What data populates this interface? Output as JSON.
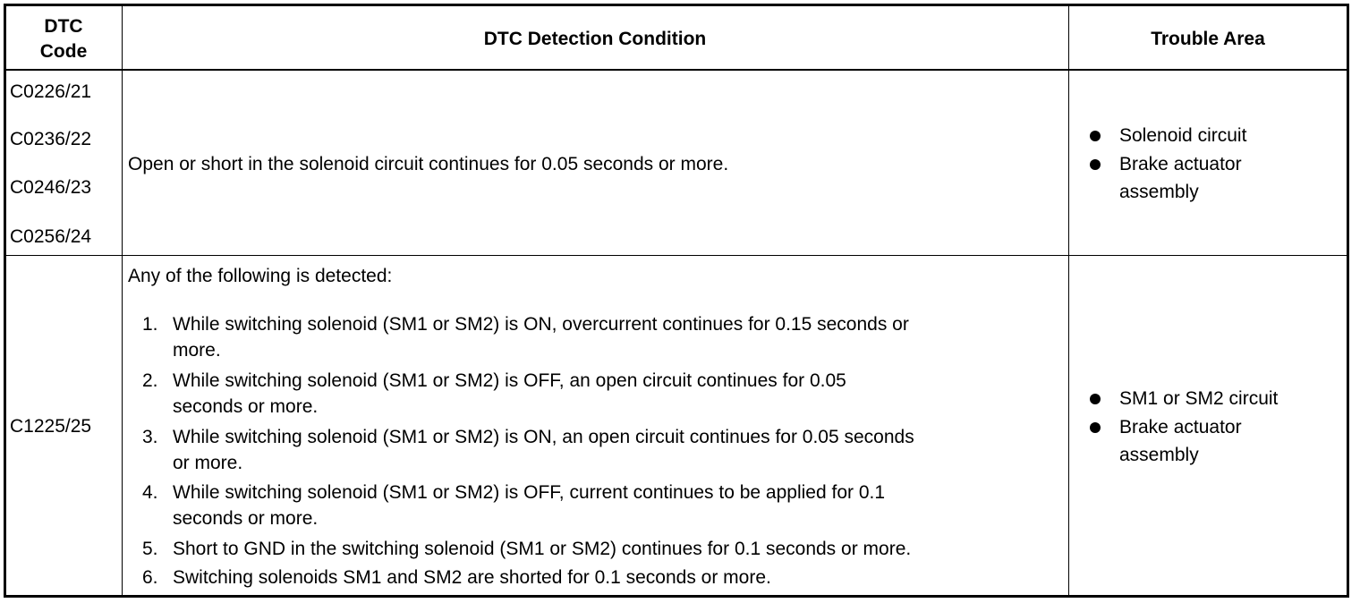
{
  "headers": {
    "code": [
      "DTC",
      "Code"
    ],
    "condition": "DTC Detection Condition",
    "area": "Trouble Area"
  },
  "rows": [
    {
      "codes": [
        "C0226/21",
        "C0236/22",
        "C0246/23",
        "C0256/24"
      ],
      "condition": "Open or short in the solenoid circuit continues for 0.05 seconds or more.",
      "areas": [
        [
          "Solenoid circuit"
        ],
        [
          "Brake actuator",
          "assembly"
        ]
      ]
    },
    {
      "codes": [
        "C1225/25"
      ],
      "condition_intro": "Any of the following is detected:",
      "conditions": [
        {
          "num": "1.",
          "lines": [
            "While switching solenoid (SM1 or SM2) is ON, overcurrent continues for 0.15 seconds or",
            "more."
          ]
        },
        {
          "num": "2.",
          "lines": [
            "While switching solenoid (SM1 or SM2) is OFF, an open circuit continues for 0.05",
            "seconds or more."
          ]
        },
        {
          "num": "3.",
          "lines": [
            "While switching solenoid (SM1 or SM2) is ON, an open circuit continues for 0.05 seconds",
            "or more."
          ]
        },
        {
          "num": "4.",
          "lines": [
            "While switching solenoid (SM1 or SM2) is OFF, current continues to be applied for 0.1",
            "seconds or more."
          ]
        },
        {
          "num": "5.",
          "lines": [
            "Short to GND in the switching solenoid (SM1 or SM2) continues for 0.1 seconds or more."
          ]
        },
        {
          "num": "6.",
          "lines": [
            "Switching solenoids SM1 and SM2 are shorted for 0.1 seconds or more."
          ]
        }
      ],
      "areas": [
        [
          "SM1 or SM2 circuit"
        ],
        [
          "Brake actuator",
          "assembly"
        ]
      ]
    }
  ]
}
